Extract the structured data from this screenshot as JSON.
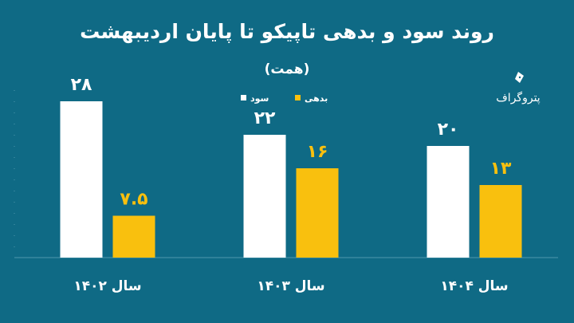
{
  "colors": {
    "background": "#0f6a85",
    "profit": "#ffffff",
    "debt": "#f9c00e",
    "axis": "#4f98ad"
  },
  "logo": {
    "text": "پتروگراف",
    "icon": "pen-nib-icon"
  },
  "chart_data": {
    "type": "bar",
    "title": "روند سود و بدهی تاپیکو تا پایان اردیبهشت",
    "subtitle": "(همت)",
    "categories": [
      "سال ۱۴۰۲",
      "سال ۱۴۰۳",
      "سال ۱۴۰۴"
    ],
    "series": [
      {
        "name": "سود",
        "values": [
          28,
          22,
          20
        ],
        "labels": [
          "۲۸",
          "۲۲",
          "۲۰"
        ]
      },
      {
        "name": "بدهی",
        "values": [
          7.5,
          16,
          13
        ],
        "labels": [
          "۷.۵",
          "۱۶",
          "۱۳"
        ]
      }
    ],
    "ylim": [
      0,
      30
    ],
    "legend": "top-center",
    "grid": false
  }
}
